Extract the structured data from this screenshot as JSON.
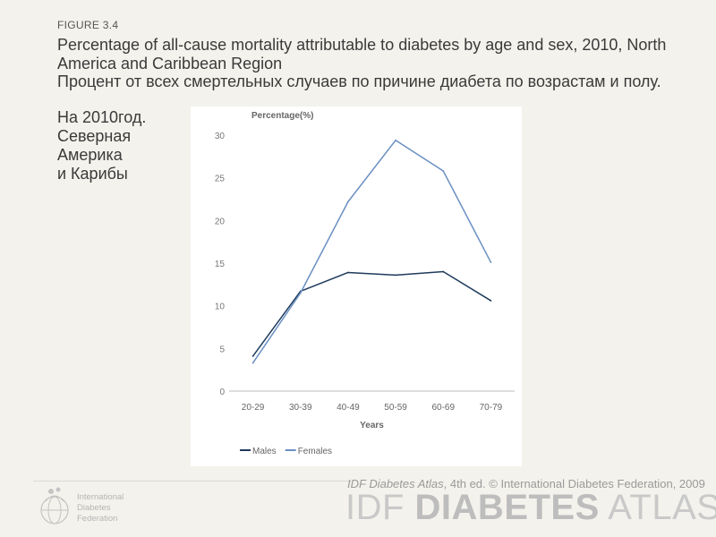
{
  "header": {
    "figure_label": "FIGURE 3.4",
    "title": "Percentage of all-cause mortality attributable to diabetes by age and sex, 2010, North America and Caribbean Region",
    "ru_title": "Процент от всех смертельных случаев по причине  диабета по возрастам и полу.",
    "ru_lines": [
      "На 2010год.",
      "Северная",
      "Америка",
      "и Карибы"
    ]
  },
  "chart_data": {
    "type": "line",
    "categories": [
      "20-29",
      "30-39",
      "40-49",
      "50-59",
      "60-69",
      "70-79"
    ],
    "series": [
      {
        "name": "Males",
        "values": [
          4.1,
          11.7,
          13.9,
          13.6,
          14.0,
          10.6
        ],
        "color": "#1f3b5c"
      },
      {
        "name": "Females",
        "values": [
          3.3,
          11.5,
          22.2,
          29.4,
          25.8,
          15.1
        ],
        "color": "#6a8fc2"
      }
    ],
    "xlabel": "Years",
    "ylabel": "Percentage(%)",
    "yticks": [
      0,
      5,
      10,
      15,
      20,
      25,
      30
    ],
    "ylim": [
      0,
      30
    ],
    "grid": false,
    "legend_position": "bottom-left"
  },
  "footer": {
    "credit_italic": "IDF Diabetes Atlas",
    "credit_rest": ", 4th ed.  © International Diabetes Federation, 2009",
    "atlas_light_1": "IDF ",
    "atlas_bold": "DIABETES",
    "atlas_light_2": " ATLAS",
    "logo_lines": [
      "International",
      "Diabetes",
      "Federation"
    ]
  }
}
